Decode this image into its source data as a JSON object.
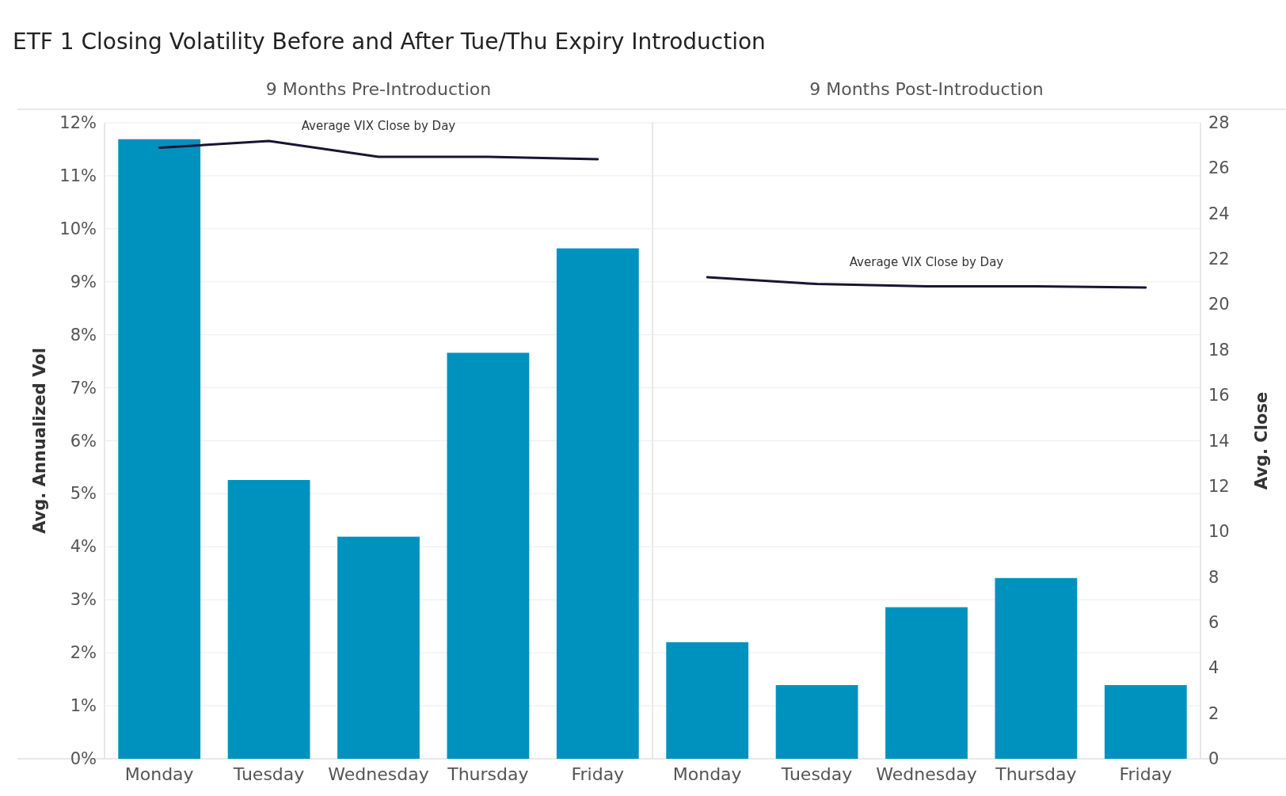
{
  "chart_data": [
    {
      "type": "bar",
      "title": "ETF 1 Closing Volatility Before and After Tue/Thu Expiry Introduction",
      "subtitle": "9 Months Pre-Introduction",
      "ylabel": "Avg. Annualized Vol",
      "categories": [
        "Monday",
        "Tuesday",
        "Wednesday",
        "Thursday",
        "Friday"
      ],
      "series": [
        {
          "color": "#0092bf",
          "values": [
            11.69,
            5.26,
            4.19,
            7.66,
            9.63
          ]
        },
        {
          "type": "line",
          "name": "Average VIX Close by Day",
          "axis": "y2",
          "color": "#1a1433",
          "values": [
            26.9,
            27.2,
            26.5,
            26.5,
            26.4
          ]
        }
      ],
      "ylim": [
        0,
        12
      ],
      "yticks": [
        {
          "value": 0,
          "label": "0%"
        },
        {
          "value": 1,
          "label": "1%"
        },
        {
          "value": 2,
          "label": "2%"
        },
        {
          "value": 3,
          "label": "3%"
        },
        {
          "value": 4,
          "label": "4%"
        },
        {
          "value": 5,
          "label": "5%"
        },
        {
          "value": 6,
          "label": "6%"
        },
        {
          "value": 7,
          "label": "7%"
        },
        {
          "value": 8,
          "label": "8%"
        },
        {
          "value": 9,
          "label": "9%"
        },
        {
          "value": 10,
          "label": "10%"
        },
        {
          "value": 11,
          "label": "11%"
        },
        {
          "value": 12,
          "label": "12%"
        }
      ],
      "y2lim": [
        0,
        28
      ],
      "grid": "y",
      "marker": "none",
      "tick_labels": "xy"
    },
    {
      "type": "bar",
      "subtitle": "9 Months Post-Introduction",
      "y2label": "Avg. Close",
      "categories": [
        "Monday",
        "Tuesday",
        "Wednesday",
        "Thursday",
        "Friday"
      ],
      "series": [
        {
          "color": "#0092bf",
          "values": [
            2.2,
            1.39,
            2.86,
            3.41,
            1.39
          ]
        },
        {
          "type": "line",
          "name": "Average VIX Close by Day",
          "axis": "y2",
          "color": "#1a1433",
          "values": [
            21.2,
            20.9,
            20.8,
            20.8,
            20.75
          ]
        }
      ],
      "ylim": [
        0,
        12
      ],
      "y2lim": [
        0,
        28
      ],
      "y2ticks": [
        0,
        2,
        4,
        6,
        8,
        10,
        12,
        14,
        16,
        18,
        20,
        22,
        24,
        26,
        28
      ],
      "grid": "y",
      "marker": "none",
      "tick_labels": "xy2"
    }
  ]
}
